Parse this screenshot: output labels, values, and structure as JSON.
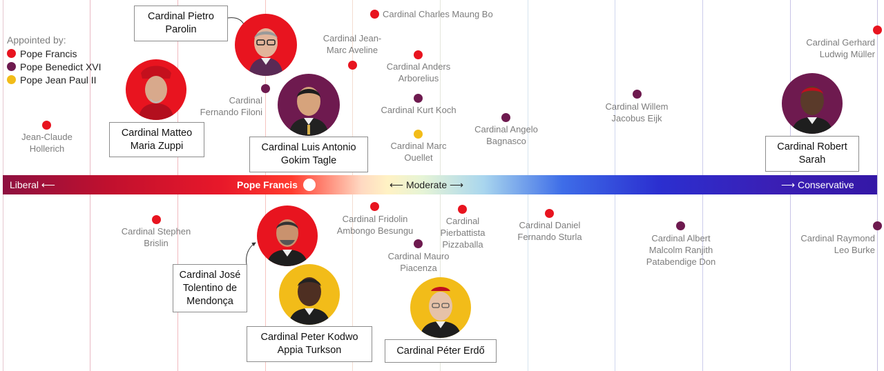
{
  "colors": {
    "pope_francis": "#e8141f",
    "pope_benedict_xvi": "#6e1a4f",
    "pope_jean_paul_ii": "#f2bc19"
  },
  "legend": {
    "title": "Appointed by:",
    "items": [
      {
        "label": "Pope Francis",
        "color": "#e8141f"
      },
      {
        "label": "Pope Benedict XVI",
        "color": "#6e1a4f"
      },
      {
        "label": "Pope Jean Paul II",
        "color": "#f2bc19"
      }
    ]
  },
  "spectrum": {
    "left_label": "Liberal",
    "center_label": "Moderate",
    "right_label": "Conservative",
    "marker_label": "Pope Francis",
    "left_arrow": "⟵",
    "right_arrow": "⟶",
    "center_left_arrow": "⟵",
    "center_right_arrow": "⟶"
  },
  "cardinals": {
    "hollerich": {
      "line1": "Jean-Claude",
      "line2": "Hollerich"
    },
    "parolin": {
      "line1": "Cardinal Pietro",
      "line2": "Parolin"
    },
    "zuppi": {
      "line1": "Cardinal Matteo",
      "line2": "Maria Zuppi"
    },
    "filoni": {
      "line1": "Cardinal",
      "line2": "Fernando Filoni"
    },
    "tagle": {
      "line1": "Cardinal Luis Antonio",
      "line2": "Gokim Tagle"
    },
    "bo": {
      "line1": "Cardinal Charles Maung Bo"
    },
    "aveline": {
      "line1": "Cardinal Jean-",
      "line2": "Marc Aveline"
    },
    "arborelius": {
      "line1": "Cardinal Anders",
      "line2": "Arborelius"
    },
    "koch": {
      "line1": "Cardinal Kurt Koch"
    },
    "ouellet": {
      "line1": "Cardinal Marc",
      "line2": "Ouellet"
    },
    "bagnasco": {
      "line1": "Cardinal Angelo",
      "line2": "Bagnasco"
    },
    "eijk": {
      "line1": "Cardinal Willem",
      "line2": "Jacobus Eijk"
    },
    "muller": {
      "line1": "Cardinal Gerhard",
      "line2": "Ludwig Müller"
    },
    "sarah": {
      "line1": "Cardinal Robert",
      "line2": "Sarah"
    },
    "brislin": {
      "line1": "Cardinal Stephen",
      "line2": "Brislin"
    },
    "mendonca": {
      "line1": "Cardinal José",
      "line2": "Tolentino de",
      "line3": "Mendonça"
    },
    "turkson": {
      "line1": "Cardinal Peter Kodwo",
      "line2": "Appia Turkson"
    },
    "ambongo": {
      "line1": "Cardinal Fridolin",
      "line2": "Ambongo Besungu"
    },
    "piacenza": {
      "line1": "Cardinal Mauro",
      "line2": "Piacenza"
    },
    "erdo": {
      "line1": "Cardinal Péter Erdő"
    },
    "pizzaballa": {
      "line1": "Cardinal",
      "line2": "Pierbattista",
      "line3": "Pizzaballa"
    },
    "sturla": {
      "line1": "Cardinal Daniel",
      "line2": "Fernando Sturla"
    },
    "ranjith": {
      "line1": "Cardinal Albert",
      "line2": "Malcolm Ranjith",
      "line3": "Patabendige Don"
    },
    "burke": {
      "line1": "Cardinal Raymond",
      "line2": "Leo Burke"
    }
  }
}
